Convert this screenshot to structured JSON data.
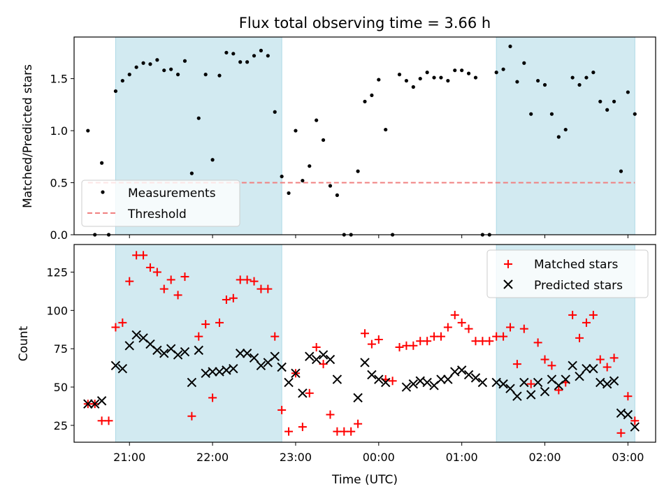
{
  "title": "Flux total observing time = 3.66 h",
  "colors": {
    "shade": "#add8e6",
    "measurement": "#000000",
    "threshold": "#f08080",
    "matched": "#ff0000",
    "predicted": "#000000"
  },
  "chart_data": [
    {
      "type": "scatter",
      "ylabel": "Matched/Predicted stars",
      "xlim": [
        "20:20",
        "03:20"
      ],
      "ylim": [
        0,
        1.9
      ],
      "yticks": [
        "0.0",
        "0.5",
        "1.0",
        "1.5"
      ],
      "shaded_intervals": [
        [
          "20:50",
          "22:50"
        ],
        [
          "01:25",
          "03:05"
        ]
      ],
      "legend": {
        "position": "lower-left",
        "entries": [
          {
            "key": "measurements",
            "label": "Measurements"
          },
          {
            "key": "threshold",
            "label": "Threshold"
          }
        ]
      },
      "threshold": {
        "value": 0.5,
        "x_range": [
          "20:30",
          "03:05"
        ]
      },
      "measurements": [
        [
          "20:30",
          1.0
        ],
        [
          "20:35",
          0.0
        ],
        [
          "20:40",
          0.69
        ],
        [
          "20:45",
          0.0
        ],
        [
          "20:50",
          1.38
        ],
        [
          "20:55",
          1.48
        ],
        [
          "21:00",
          1.54
        ],
        [
          "21:05",
          1.61
        ],
        [
          "21:10",
          1.65
        ],
        [
          "21:15",
          1.64
        ],
        [
          "21:20",
          1.68
        ],
        [
          "21:25",
          1.58
        ],
        [
          "21:30",
          1.59
        ],
        [
          "21:35",
          1.54
        ],
        [
          "21:40",
          1.67
        ],
        [
          "21:45",
          0.59
        ],
        [
          "21:50",
          1.12
        ],
        [
          "21:55",
          1.54
        ],
        [
          "22:00",
          0.72
        ],
        [
          "22:05",
          1.53
        ],
        [
          "22:10",
          1.75
        ],
        [
          "22:15",
          1.74
        ],
        [
          "22:20",
          1.66
        ],
        [
          "22:25",
          1.66
        ],
        [
          "22:30",
          1.72
        ],
        [
          "22:35",
          1.77
        ],
        [
          "22:40",
          1.72
        ],
        [
          "22:45",
          1.18
        ],
        [
          "22:50",
          0.56
        ],
        [
          "22:55",
          0.4
        ],
        [
          "23:00",
          1.0
        ],
        [
          "23:05",
          0.52
        ],
        [
          "23:10",
          0.66
        ],
        [
          "23:15",
          1.1
        ],
        [
          "23:20",
          0.91
        ],
        [
          "23:25",
          0.47
        ],
        [
          "23:30",
          0.38
        ],
        [
          "23:35",
          0.0
        ],
        [
          "23:40",
          0.0
        ],
        [
          "23:45",
          0.61
        ],
        [
          "23:50",
          1.28
        ],
        [
          "23:55",
          1.34
        ],
        [
          "00:00",
          1.49
        ],
        [
          "00:05",
          1.01
        ],
        [
          "00:10",
          0.0
        ],
        [
          "00:15",
          1.54
        ],
        [
          "00:20",
          1.48
        ],
        [
          "00:25",
          1.42
        ],
        [
          "00:30",
          1.5
        ],
        [
          "00:35",
          1.56
        ],
        [
          "00:40",
          1.51
        ],
        [
          "00:45",
          1.51
        ],
        [
          "00:50",
          1.48
        ],
        [
          "00:55",
          1.58
        ],
        [
          "01:00",
          1.58
        ],
        [
          "01:05",
          1.55
        ],
        [
          "01:10",
          1.51
        ],
        [
          "01:15",
          0.0
        ],
        [
          "01:20",
          0.0
        ],
        [
          "01:25",
          1.56
        ],
        [
          "01:30",
          1.59
        ],
        [
          "01:35",
          1.81
        ],
        [
          "01:40",
          1.47
        ],
        [
          "01:45",
          1.65
        ],
        [
          "01:50",
          1.16
        ],
        [
          "01:55",
          1.48
        ],
        [
          "02:00",
          1.44
        ],
        [
          "02:05",
          1.16
        ],
        [
          "02:10",
          0.94
        ],
        [
          "02:15",
          1.01
        ],
        [
          "02:20",
          1.51
        ],
        [
          "02:25",
          1.44
        ],
        [
          "02:30",
          1.51
        ],
        [
          "02:35",
          1.56
        ],
        [
          "02:40",
          1.28
        ],
        [
          "02:45",
          1.2
        ],
        [
          "02:50",
          1.28
        ],
        [
          "02:55",
          0.61
        ],
        [
          "03:00",
          1.37
        ],
        [
          "03:05",
          1.16
        ]
      ]
    },
    {
      "type": "scatter",
      "xlabel": "Time (UTC)",
      "ylabel": "Count",
      "xlim": [
        "20:20",
        "03:20"
      ],
      "ylim": [
        14,
        143
      ],
      "yticks": [
        "25",
        "50",
        "75",
        "100",
        "125"
      ],
      "xticks": [
        "21:00",
        "22:00",
        "23:00",
        "00:00",
        "01:00",
        "02:00",
        "03:00"
      ],
      "shaded_intervals": [
        [
          "20:50",
          "22:50"
        ],
        [
          "01:25",
          "03:05"
        ]
      ],
      "legend": {
        "position": "upper-right",
        "entries": [
          {
            "key": "matched",
            "label": "Matched stars"
          },
          {
            "key": "predicted",
            "label": "Predicted stars"
          }
        ]
      },
      "series": [
        {
          "key": "matched",
          "marker": "plus",
          "points": [
            [
              "20:30",
              39
            ],
            [
              "20:35",
              39
            ],
            [
              "20:40",
              28
            ],
            [
              "20:45",
              28
            ],
            [
              "20:50",
              89
            ],
            [
              "20:55",
              92
            ],
            [
              "21:00",
              119
            ],
            [
              "21:05",
              136
            ],
            [
              "21:10",
              136
            ],
            [
              "21:15",
              128
            ],
            [
              "21:20",
              125
            ],
            [
              "21:25",
              114
            ],
            [
              "21:30",
              120
            ],
            [
              "21:35",
              110
            ],
            [
              "21:40",
              122
            ],
            [
              "21:45",
              31
            ],
            [
              "21:50",
              83
            ],
            [
              "21:55",
              91
            ],
            [
              "22:00",
              43
            ],
            [
              "22:05",
              92
            ],
            [
              "22:10",
              107
            ],
            [
              "22:15",
              108
            ],
            [
              "22:20",
              120
            ],
            [
              "22:25",
              120
            ],
            [
              "22:30",
              119
            ],
            [
              "22:35",
              114
            ],
            [
              "22:40",
              114
            ],
            [
              "22:45",
              83
            ],
            [
              "22:50",
              35
            ],
            [
              "22:55",
              21
            ],
            [
              "23:00",
              59
            ],
            [
              "23:05",
              24
            ],
            [
              "23:10",
              46
            ],
            [
              "23:15",
              76
            ],
            [
              "23:20",
              65
            ],
            [
              "23:25",
              32
            ],
            [
              "23:30",
              21
            ],
            [
              "23:35",
              21
            ],
            [
              "23:40",
              21
            ],
            [
              "23:45",
              26
            ],
            [
              "23:50",
              85
            ],
            [
              "23:55",
              78
            ],
            [
              "00:00",
              81
            ],
            [
              "00:05",
              55
            ],
            [
              "00:10",
              54
            ],
            [
              "00:15",
              76
            ],
            [
              "00:20",
              77
            ],
            [
              "00:25",
              77
            ],
            [
              "00:30",
              80
            ],
            [
              "00:35",
              80
            ],
            [
              "00:40",
              83
            ],
            [
              "00:45",
              83
            ],
            [
              "00:50",
              89
            ],
            [
              "00:55",
              97
            ],
            [
              "01:00",
              92
            ],
            [
              "01:05",
              88
            ],
            [
              "01:10",
              80
            ],
            [
              "01:15",
              80
            ],
            [
              "01:20",
              80
            ],
            [
              "01:25",
              83
            ],
            [
              "01:30",
              83
            ],
            [
              "01:35",
              89
            ],
            [
              "01:40",
              65
            ],
            [
              "01:45",
              88
            ],
            [
              "01:50",
              52
            ],
            [
              "01:55",
              79
            ],
            [
              "02:00",
              68
            ],
            [
              "02:05",
              64
            ],
            [
              "02:10",
              48
            ],
            [
              "02:15",
              53
            ],
            [
              "02:20",
              97
            ],
            [
              "02:25",
              82
            ],
            [
              "02:30",
              92
            ],
            [
              "02:35",
              97
            ],
            [
              "02:40",
              68
            ],
            [
              "02:45",
              63
            ],
            [
              "02:50",
              69
            ],
            [
              "02:55",
              20
            ],
            [
              "03:00",
              44
            ],
            [
              "03:05",
              28
            ]
          ]
        },
        {
          "key": "predicted",
          "marker": "cross",
          "points": [
            [
              "20:30",
              39
            ],
            [
              "20:35",
              39
            ],
            [
              "20:40",
              41
            ],
            [
              "20:50",
              64
            ],
            [
              "20:55",
              62
            ],
            [
              "21:00",
              77
            ],
            [
              "21:05",
              84
            ],
            [
              "21:10",
              82
            ],
            [
              "21:15",
              78
            ],
            [
              "21:20",
              74
            ],
            [
              "21:25",
              72
            ],
            [
              "21:30",
              75
            ],
            [
              "21:35",
              71
            ],
            [
              "21:40",
              73
            ],
            [
              "21:45",
              53
            ],
            [
              "21:50",
              74
            ],
            [
              "21:55",
              59
            ],
            [
              "22:00",
              60
            ],
            [
              "22:05",
              60
            ],
            [
              "22:10",
              61
            ],
            [
              "22:15",
              62
            ],
            [
              "22:20",
              72
            ],
            [
              "22:25",
              72
            ],
            [
              "22:30",
              69
            ],
            [
              "22:35",
              64
            ],
            [
              "22:40",
              66
            ],
            [
              "22:45",
              70
            ],
            [
              "22:50",
              63
            ],
            [
              "22:55",
              53
            ],
            [
              "23:00",
              59
            ],
            [
              "23:05",
              46
            ],
            [
              "23:10",
              70
            ],
            [
              "23:15",
              68
            ],
            [
              "23:20",
              71
            ],
            [
              "23:25",
              68
            ],
            [
              "23:30",
              55
            ],
            [
              "23:45",
              43
            ],
            [
              "23:50",
              66
            ],
            [
              "23:55",
              58
            ],
            [
              "00:00",
              55
            ],
            [
              "00:05",
              53
            ],
            [
              "00:20",
              50
            ],
            [
              "00:25",
              52
            ],
            [
              "00:30",
              54
            ],
            [
              "00:35",
              53
            ],
            [
              "00:40",
              51
            ],
            [
              "00:45",
              55
            ],
            [
              "00:50",
              55
            ],
            [
              "00:55",
              60
            ],
            [
              "01:00",
              61
            ],
            [
              "01:05",
              58
            ],
            [
              "01:10",
              56
            ],
            [
              "01:15",
              53
            ],
            [
              "01:25",
              53
            ],
            [
              "01:30",
              52
            ],
            [
              "01:35",
              49
            ],
            [
              "01:40",
              44
            ],
            [
              "01:45",
              53
            ],
            [
              "01:50",
              45
            ],
            [
              "01:55",
              53
            ],
            [
              "02:00",
              47
            ],
            [
              "02:05",
              55
            ],
            [
              "02:10",
              51
            ],
            [
              "02:15",
              55
            ],
            [
              "02:20",
              64
            ],
            [
              "02:25",
              57
            ],
            [
              "02:30",
              62
            ],
            [
              "02:35",
              62
            ],
            [
              "02:40",
              53
            ],
            [
              "02:45",
              52
            ],
            [
              "02:50",
              54
            ],
            [
              "02:55",
              33
            ],
            [
              "03:00",
              32
            ],
            [
              "03:05",
              24
            ]
          ]
        }
      ]
    }
  ]
}
